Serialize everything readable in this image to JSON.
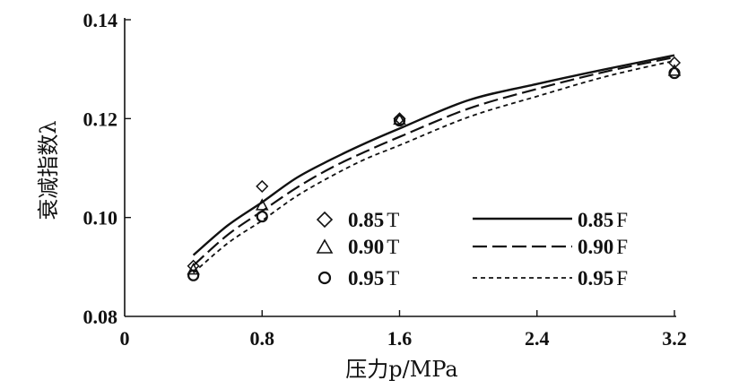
{
  "chart_data": {
    "type": "line",
    "xlabel": "压力p/MPa",
    "ylabel": "衰减指数λ",
    "xlim": [
      0,
      3.2
    ],
    "ylim": [
      0.08,
      0.14
    ],
    "x_ticks": [
      "0",
      "0.8",
      "1.6",
      "2.4",
      "3.2"
    ],
    "y_ticks": [
      "0.08",
      "0.10",
      "0.12",
      "0.14"
    ],
    "grid": false,
    "legend_position": "bottom-right",
    "series": [
      {
        "name": "0.85 T",
        "kind": "scatter",
        "marker": "diamond",
        "x": [
          0.4,
          0.8,
          1.6,
          3.2
        ],
        "y": [
          0.0902,
          0.1063,
          0.12,
          0.1313
        ]
      },
      {
        "name": "0.90 T",
        "kind": "scatter",
        "marker": "triangle",
        "x": [
          0.4,
          0.8,
          1.6,
          3.2
        ],
        "y": [
          0.0895,
          0.1025,
          0.1198,
          0.1297
        ]
      },
      {
        "name": "0.95 T",
        "kind": "scatter",
        "marker": "circle",
        "x": [
          0.4,
          0.8,
          1.6,
          3.2
        ],
        "y": [
          0.0883,
          0.1002,
          0.1196,
          0.1292
        ]
      },
      {
        "name": "0.85 F",
        "kind": "line",
        "dash": "solid",
        "x": [
          0.4,
          0.6,
          0.8,
          1.0,
          1.2,
          1.4,
          1.6,
          2.0,
          2.4,
          2.8,
          3.2
        ],
        "y": [
          0.0924,
          0.0984,
          0.1031,
          0.108,
          0.1117,
          0.115,
          0.118,
          0.1237,
          0.127,
          0.13,
          0.1328
        ]
      },
      {
        "name": "0.90 F",
        "kind": "line",
        "dash": "long-dash",
        "x": [
          0.4,
          0.6,
          0.8,
          1.0,
          1.2,
          1.4,
          1.6,
          2.0,
          2.4,
          2.8,
          3.2
        ],
        "y": [
          0.0903,
          0.0965,
          0.1013,
          0.106,
          0.11,
          0.1133,
          0.1163,
          0.122,
          0.126,
          0.1295,
          0.1324
        ]
      },
      {
        "name": "0.95 F",
        "kind": "line",
        "dash": "short-dash",
        "x": [
          0.4,
          0.6,
          0.8,
          1.0,
          1.2,
          1.4,
          1.6,
          2.0,
          2.4,
          2.8,
          3.2
        ],
        "y": [
          0.0888,
          0.0948,
          0.0994,
          0.1043,
          0.1083,
          0.1118,
          0.1146,
          0.1203,
          0.1245,
          0.1285,
          0.1317
        ]
      }
    ],
    "legend": [
      {
        "num": "0.85",
        "suffix": "T"
      },
      {
        "num": "0.90",
        "suffix": "T"
      },
      {
        "num": "0.95",
        "suffix": "T"
      },
      {
        "num": "0.85",
        "suffix": "F"
      },
      {
        "num": "0.90",
        "suffix": "F"
      },
      {
        "num": "0.95",
        "suffix": "F"
      }
    ]
  }
}
